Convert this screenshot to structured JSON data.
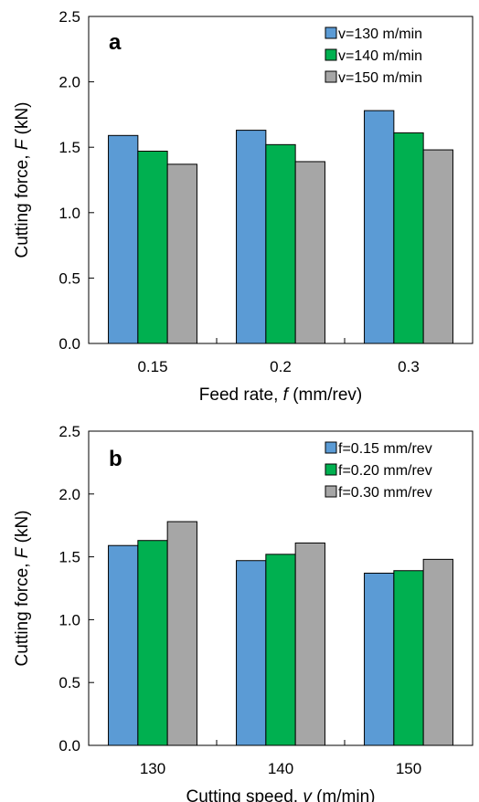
{
  "chart_data": [
    {
      "type": "bar",
      "panel_label": "a",
      "xlabel_prefix": "Feed rate, ",
      "xlabel_var": "f",
      "xlabel_suffix": " (mm/rev)",
      "ylabel_prefix": "Cutting force, ",
      "ylabel_var": "F",
      "ylabel_suffix": " (kN)",
      "categories": [
        "0.15",
        "0.2",
        "0.3"
      ],
      "ylim": [
        0,
        2.5
      ],
      "yticks": [
        "0.0",
        "0.5",
        "1.0",
        "1.5",
        "2.0",
        "2.5"
      ],
      "grid": false,
      "legend_position": "top-right",
      "series": [
        {
          "name": "v=130 m/min",
          "values": [
            1.59,
            1.63,
            1.78
          ]
        },
        {
          "name": "v=140 m/min",
          "values": [
            1.47,
            1.52,
            1.61
          ]
        },
        {
          "name": "v=150 m/min",
          "values": [
            1.37,
            1.39,
            1.48
          ]
        }
      ]
    },
    {
      "type": "bar",
      "panel_label": "b",
      "xlabel_prefix": "Cutting speed, ",
      "xlabel_var": "v",
      "xlabel_suffix": " (m/min)",
      "ylabel_prefix": "Cutting force, ",
      "ylabel_var": "F",
      "ylabel_suffix": " (kN)",
      "categories": [
        "130",
        "140",
        "150"
      ],
      "ylim": [
        0,
        2.5
      ],
      "yticks": [
        "0.0",
        "0.5",
        "1.0",
        "1.5",
        "2.0",
        "2.5"
      ],
      "grid": false,
      "legend_position": "top-right",
      "series": [
        {
          "name": "f=0.15 mm/rev",
          "values": [
            1.59,
            1.47,
            1.37
          ]
        },
        {
          "name": "f=0.20 mm/rev",
          "values": [
            1.63,
            1.52,
            1.39
          ]
        },
        {
          "name": "f=0.30 mm/rev",
          "values": [
            1.78,
            1.61,
            1.48
          ]
        }
      ]
    }
  ],
  "colors": {
    "series": [
      "#5B9BD5",
      "#00B050",
      "#A6A6A6"
    ],
    "outline": "#000000"
  }
}
